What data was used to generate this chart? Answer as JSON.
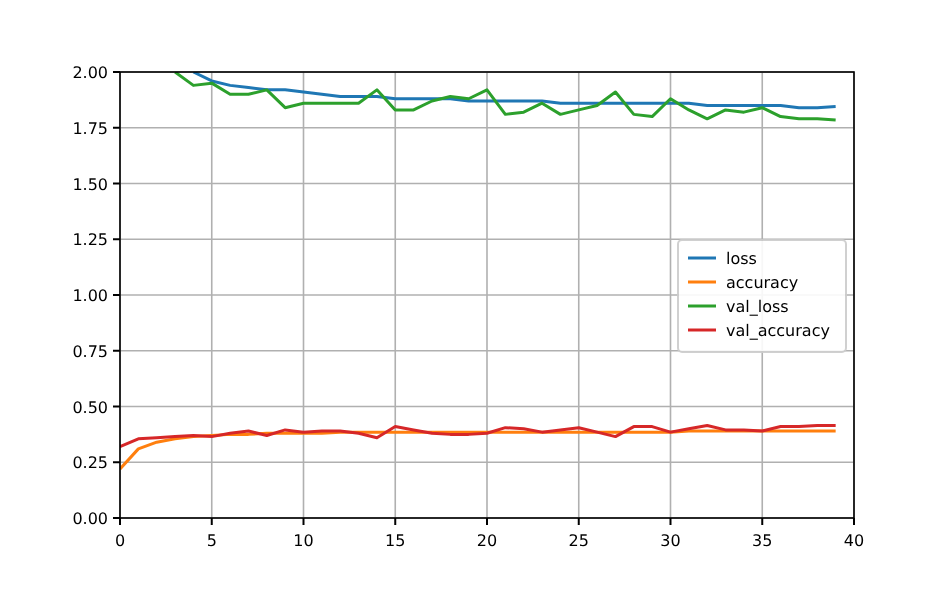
{
  "chart_data": {
    "type": "line",
    "x": [
      0,
      1,
      2,
      3,
      4,
      5,
      6,
      7,
      8,
      9,
      10,
      11,
      12,
      13,
      14,
      15,
      16,
      17,
      18,
      19,
      20,
      21,
      22,
      23,
      24,
      25,
      26,
      27,
      28,
      29,
      30,
      31,
      32,
      33,
      34,
      35,
      36,
      37,
      38,
      39
    ],
    "series": [
      {
        "name": "loss",
        "color": "#1f77b4",
        "values": [
          null,
          null,
          null,
          null,
          2.0,
          1.96,
          1.94,
          1.93,
          1.92,
          1.92,
          1.91,
          1.9,
          1.89,
          1.89,
          1.89,
          1.88,
          1.88,
          1.88,
          1.88,
          1.87,
          1.87,
          1.87,
          1.87,
          1.87,
          1.86,
          1.86,
          1.86,
          1.86,
          1.86,
          1.86,
          1.86,
          1.86,
          1.85,
          1.85,
          1.85,
          1.85,
          1.85,
          1.84,
          1.84,
          1.845
        ]
      },
      {
        "name": "accuracy",
        "color": "#ff7f0e",
        "values": [
          0.22,
          0.31,
          0.34,
          0.355,
          0.365,
          0.37,
          0.375,
          0.375,
          0.38,
          0.38,
          0.38,
          0.38,
          0.385,
          0.385,
          0.385,
          0.385,
          0.385,
          0.385,
          0.385,
          0.385,
          0.385,
          0.385,
          0.385,
          0.385,
          0.385,
          0.385,
          0.385,
          0.385,
          0.385,
          0.385,
          0.385,
          0.39,
          0.39,
          0.39,
          0.39,
          0.39,
          0.39,
          0.39,
          0.39,
          0.39
        ]
      },
      {
        "name": "val_loss",
        "color": "#2ca02c",
        "values": [
          null,
          null,
          null,
          2.0,
          1.94,
          1.95,
          1.9,
          1.9,
          1.92,
          1.84,
          1.86,
          1.86,
          1.86,
          1.86,
          1.92,
          1.83,
          1.83,
          1.87,
          1.89,
          1.88,
          1.92,
          1.81,
          1.82,
          1.86,
          1.81,
          1.83,
          1.85,
          1.91,
          1.81,
          1.8,
          1.88,
          1.83,
          1.79,
          1.83,
          1.82,
          1.84,
          1.8,
          1.79,
          1.79,
          1.785
        ]
      },
      {
        "name": "val_accuracy",
        "color": "#d62728",
        "values": [
          0.32,
          0.355,
          0.36,
          0.365,
          0.37,
          0.365,
          0.38,
          0.39,
          0.37,
          0.395,
          0.385,
          0.39,
          0.39,
          0.38,
          0.36,
          0.41,
          0.395,
          0.38,
          0.375,
          0.375,
          0.38,
          0.405,
          0.4,
          0.385,
          0.395,
          0.405,
          0.385,
          0.365,
          0.41,
          0.41,
          0.385,
          0.4,
          0.415,
          0.395,
          0.395,
          0.39,
          0.41,
          0.41,
          0.415,
          0.415
        ]
      }
    ],
    "xlim": [
      0,
      40
    ],
    "xticks": [
      0,
      5,
      10,
      15,
      20,
      25,
      30,
      35,
      40
    ],
    "ylim": [
      0,
      2
    ],
    "yticks": [
      {
        "value": 0,
        "label": "0.00"
      },
      0.25,
      {
        "value": 0.5,
        "label": "0.50"
      },
      0.75,
      {
        "value": 1,
        "label": "1.00"
      },
      1.25,
      {
        "value": 1.5,
        "label": "1.50"
      },
      1.75,
      {
        "value": 2,
        "label": "2.00"
      }
    ],
    "grid": true,
    "legend": "right",
    "marker": "none",
    "line_style": "solid"
  }
}
